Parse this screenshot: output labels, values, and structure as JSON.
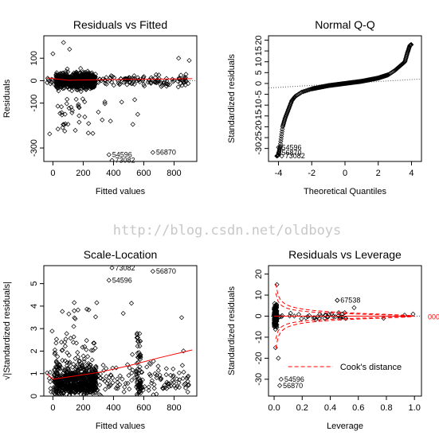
{
  "watermark": "http://blog.csdn.net/oldboys",
  "chart_data": [
    {
      "type": "scatter",
      "title": "Residuals vs Fitted",
      "xlabel": "Fitted values",
      "ylabel": "Residuals",
      "xticks": [
        0,
        200,
        400,
        600,
        800
      ],
      "yticks": [
        -300,
        -100,
        0,
        100
      ],
      "xlim": [
        -60,
        950
      ],
      "ylim": [
        -360,
        200
      ],
      "reference_line": {
        "type": "hline",
        "y": 0,
        "style": "dotted"
      },
      "smoother": {
        "color": "#ff0000",
        "x": [
          -40,
          100,
          300,
          500,
          700,
          920
        ],
        "y": [
          12,
          2,
          4,
          6,
          7,
          9
        ]
      },
      "labeled_points": [
        {
          "label": "54596",
          "x": 370,
          "y": -330
        },
        {
          "label": "73082",
          "x": 390,
          "y": -355
        },
        {
          "label": "56870",
          "x": 660,
          "y": -320
        }
      ],
      "point_cloud": {
        "x_range": [
          -50,
          920
        ],
        "y_range": [
          -250,
          180
        ],
        "dense_x_range": [
          0,
          300
        ]
      }
    },
    {
      "type": "scatter",
      "title": "Normal Q-Q",
      "xlabel": "Theoretical Quantiles",
      "ylabel": "Standardized residuals",
      "xticks": [
        -4,
        -2,
        0,
        2,
        4
      ],
      "yticks": [
        -30,
        -25,
        -20,
        -15,
        -10,
        -5,
        0,
        5,
        10,
        15,
        20
      ],
      "xlim": [
        -4.6,
        4.6
      ],
      "ylim": [
        -36,
        22
      ],
      "reference_line": {
        "type": "abline",
        "slope": 0.45,
        "intercept": 0,
        "style": "dotted"
      },
      "curve": {
        "x": [
          -4.1,
          -4.0,
          -3.9,
          -3.75,
          -3.6,
          -3.4,
          -3.2,
          -3.0,
          -2.6,
          -2.0,
          -1.0,
          0.0,
          1.0,
          2.0,
          2.6,
          3.0,
          3.3,
          3.6,
          3.75,
          3.9,
          4.0
        ],
        "y": [
          -33.5,
          -33.0,
          -29.0,
          -20.0,
          -16.0,
          -12.0,
          -8.0,
          -6.0,
          -4.0,
          -2.5,
          -1.0,
          0.0,
          1.0,
          2.5,
          4.0,
          6.0,
          8.0,
          10.0,
          14.0,
          17.5,
          18.0
        ]
      },
      "labeled_points": [
        {
          "label": "54596",
          "x": -4.0,
          "y": -29.5
        },
        {
          "label": "56870",
          "x": -4.0,
          "y": -32.0
        },
        {
          "label": "73082",
          "x": -3.8,
          "y": -33.5
        }
      ]
    },
    {
      "type": "scatter",
      "title": "Scale-Location",
      "xlabel": "Fitted values",
      "ylabel": "√|Standardized residuals|",
      "xticks": [
        0,
        200,
        400,
        600,
        800
      ],
      "yticks": [
        0,
        1,
        2,
        3,
        4,
        5
      ],
      "xlim": [
        -60,
        950
      ],
      "ylim": [
        0,
        5.8
      ],
      "smoother": {
        "color": "#ff0000",
        "x": [
          -40,
          0,
          100,
          300,
          500,
          700,
          920
        ],
        "y": [
          1.0,
          0.75,
          0.85,
          1.05,
          1.35,
          1.7,
          2.05
        ]
      },
      "labeled_points": [
        {
          "label": "73082",
          "x": 390,
          "y": 5.7
        },
        {
          "label": "56870",
          "x": 660,
          "y": 5.55
        },
        {
          "label": "54596",
          "x": 370,
          "y": 5.15
        }
      ],
      "point_cloud": {
        "x_range": [
          -50,
          920
        ],
        "y_range": [
          0,
          4.3
        ],
        "dense_x_range": [
          0,
          300
        ]
      }
    },
    {
      "type": "scatter",
      "title": "Residuals vs Leverage",
      "xlabel": "Leverage",
      "ylabel": "Standardized residuals",
      "xticks": [
        0.0,
        0.2,
        0.4,
        0.6,
        0.8,
        1.0
      ],
      "yticks": [
        -30,
        -20,
        -10,
        0,
        10,
        20
      ],
      "xlim": [
        -0.04,
        1.05
      ],
      "ylim": [
        -38,
        24
      ],
      "reference_line": {
        "type": "hline",
        "y": 0,
        "style": "dotted"
      },
      "cooks_distance": {
        "label": "Cook's distance",
        "levels": [
          0.5,
          1
        ],
        "color": "#ff0000",
        "style": "dashed"
      },
      "smoother": {
        "color": "#ff0000",
        "x": [
          0.0,
          0.2,
          0.5,
          1.0
        ],
        "y": [
          0,
          0,
          0,
          0
        ]
      },
      "labeled_points": [
        {
          "label": "67538",
          "x": 0.45,
          "y": 7.5
        },
        {
          "label": "54596",
          "x": 0.05,
          "y": -30.0
        },
        {
          "label": "56870",
          "x": 0.04,
          "y": -33.0
        }
      ],
      "side_labels": [
        "0",
        "0",
        "0"
      ]
    }
  ]
}
